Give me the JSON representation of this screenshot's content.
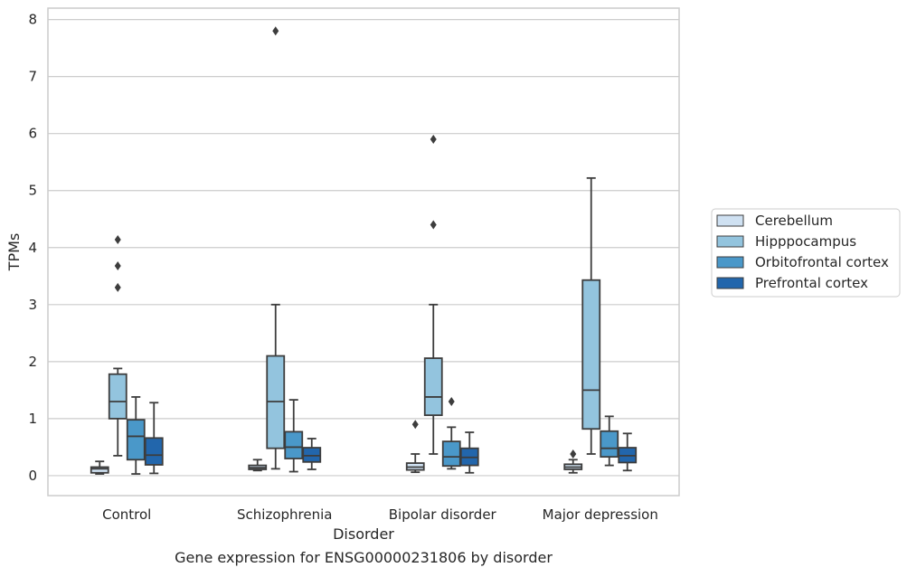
{
  "chart_data": {
    "type": "box",
    "title": "",
    "caption": "Gene expression for ENSG00000231806 by disorder",
    "xlabel": "Disorder",
    "ylabel": "TPMs",
    "ylim": [
      -0.35,
      8.2
    ],
    "yticks": [
      "0",
      "1",
      "2",
      "3",
      "4",
      "5",
      "6",
      "7",
      "8"
    ],
    "grid": "horizontal",
    "legend_position": "right",
    "categories": [
      "Control",
      "Schizophrenia",
      "Bipolar disorder",
      "Major depression"
    ],
    "series": [
      {
        "name": "Cerebellum",
        "color": "#cfe1f2",
        "boxes": [
          {
            "whisker_low": 0.03,
            "q1": 0.05,
            "median": 0.12,
            "q3": 0.15,
            "whisker_high": 0.25,
            "outliers": []
          },
          {
            "whisker_low": 0.09,
            "q1": 0.11,
            "median": 0.14,
            "q3": 0.18,
            "whisker_high": 0.28,
            "outliers": []
          },
          {
            "whisker_low": 0.06,
            "q1": 0.1,
            "median": 0.15,
            "q3": 0.22,
            "whisker_high": 0.38,
            "outliers": [
              0.9
            ]
          },
          {
            "whisker_low": 0.05,
            "q1": 0.11,
            "median": 0.15,
            "q3": 0.2,
            "whisker_high": 0.28,
            "outliers": [
              0.38
            ]
          }
        ]
      },
      {
        "name": "Hipppocampus",
        "color": "#93c4de",
        "boxes": [
          {
            "whisker_low": 0.35,
            "q1": 1.0,
            "median": 1.3,
            "q3": 1.78,
            "whisker_high": 1.88,
            "outliers": [
              3.3,
              3.68,
              4.14
            ]
          },
          {
            "whisker_low": 0.12,
            "q1": 0.48,
            "median": 1.3,
            "q3": 2.1,
            "whisker_high": 3.0,
            "outliers": [
              7.8
            ]
          },
          {
            "whisker_low": 0.38,
            "q1": 1.06,
            "median": 1.38,
            "q3": 2.06,
            "whisker_high": 3.0,
            "outliers": [
              4.4,
              5.9
            ]
          },
          {
            "whisker_low": 0.38,
            "q1": 0.82,
            "median": 1.5,
            "q3": 3.43,
            "whisker_high": 5.22,
            "outliers": []
          }
        ]
      },
      {
        "name": "Orbitofrontal cortex",
        "color": "#4a98c9",
        "boxes": [
          {
            "whisker_low": 0.03,
            "q1": 0.28,
            "median": 0.69,
            "q3": 0.98,
            "whisker_high": 1.38,
            "outliers": []
          },
          {
            "whisker_low": 0.07,
            "q1": 0.3,
            "median": 0.5,
            "q3": 0.77,
            "whisker_high": 1.33,
            "outliers": []
          },
          {
            "whisker_low": 0.12,
            "q1": 0.17,
            "median": 0.33,
            "q3": 0.6,
            "whisker_high": 0.85,
            "outliers": [
              1.3
            ]
          },
          {
            "whisker_low": 0.18,
            "q1": 0.33,
            "median": 0.48,
            "q3": 0.78,
            "whisker_high": 1.04,
            "outliers": []
          }
        ]
      },
      {
        "name": "Prefrontal cortex",
        "color": "#2266ac",
        "boxes": [
          {
            "whisker_low": 0.04,
            "q1": 0.19,
            "median": 0.36,
            "q3": 0.66,
            "whisker_high": 1.28,
            "outliers": []
          },
          {
            "whisker_low": 0.11,
            "q1": 0.24,
            "median": 0.35,
            "q3": 0.49,
            "whisker_high": 0.65,
            "outliers": []
          },
          {
            "whisker_low": 0.05,
            "q1": 0.18,
            "median": 0.32,
            "q3": 0.48,
            "whisker_high": 0.76,
            "outliers": []
          },
          {
            "whisker_low": 0.09,
            "q1": 0.23,
            "median": 0.35,
            "q3": 0.49,
            "whisker_high": 0.74,
            "outliers": []
          }
        ]
      }
    ]
  }
}
